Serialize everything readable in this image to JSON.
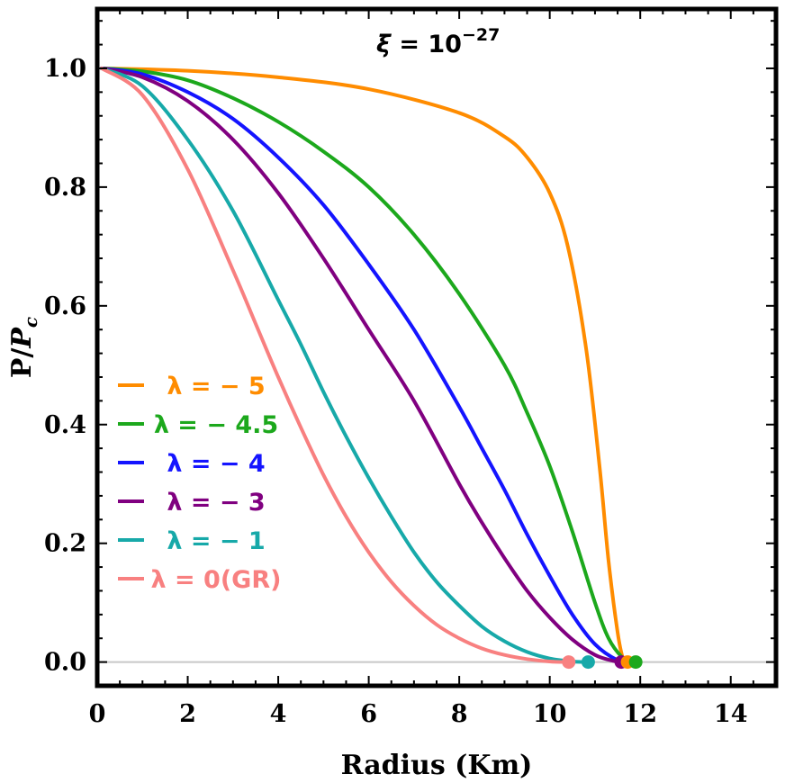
{
  "chart_data": {
    "type": "line",
    "xlabel": "Radius (Km)",
    "ylabel": "P/P_c",
    "ylabel_main": "P/",
    "ylabel_italic": "P",
    "ylabel_sub": "c",
    "xlim": [
      0,
      15
    ],
    "ylim": [
      -0.04,
      1.1
    ],
    "xticks": [
      0,
      2,
      4,
      6,
      8,
      10,
      12,
      14
    ],
    "xtick_labels": [
      "0",
      "2",
      "4",
      "6",
      "8",
      "10",
      "12",
      "14"
    ],
    "yticks": [
      0.0,
      0.2,
      0.4,
      0.6,
      0.8,
      1.0
    ],
    "ytick_labels": [
      "0.0",
      "0.2",
      "0.4",
      "0.6",
      "0.8",
      "1.0"
    ],
    "annotation": {
      "symbol": "ξ",
      "text": " = 10",
      "superscript": "−27"
    },
    "grid": false,
    "legend_position": "left",
    "series": [
      {
        "name": "λ = − 5",
        "color": "#ff8c00",
        "x": [
          0.1,
          2,
          4,
          6,
          8,
          9,
          9.5,
          10,
          10.4,
          10.8,
          11.1,
          11.3,
          11.5,
          11.62,
          11.7
        ],
        "y": [
          1.0,
          0.996,
          0.985,
          0.965,
          0.925,
          0.885,
          0.85,
          0.79,
          0.7,
          0.53,
          0.33,
          0.17,
          0.05,
          0.005,
          0.0
        ]
      },
      {
        "name": "λ = − 4.5",
        "color": "#1ca81c",
        "x": [
          0.1,
          1,
          2,
          3,
          4,
          5,
          6,
          7,
          8,
          9,
          9.5,
          10,
          10.5,
          11,
          11.3,
          11.6,
          11.8,
          11.9
        ],
        "y": [
          1.0,
          0.995,
          0.98,
          0.95,
          0.91,
          0.86,
          0.8,
          0.72,
          0.62,
          0.5,
          0.42,
          0.33,
          0.22,
          0.1,
          0.04,
          0.008,
          0.001,
          0.0
        ]
      },
      {
        "name": "λ = − 4",
        "color": "#1414ff",
        "x": [
          0.1,
          1,
          2,
          3,
          4,
          5,
          6,
          7,
          8,
          8.5,
          9,
          9.5,
          10,
          10.5,
          11,
          11.5,
          11.8
        ],
        "y": [
          1.0,
          0.99,
          0.96,
          0.915,
          0.85,
          0.77,
          0.67,
          0.56,
          0.43,
          0.36,
          0.29,
          0.215,
          0.145,
          0.08,
          0.03,
          0.003,
          0.0
        ]
      },
      {
        "name": "λ = − 3",
        "color": "#800080",
        "x": [
          0.1,
          1,
          2,
          3,
          4,
          5,
          6,
          7,
          8,
          8.5,
          9,
          9.5,
          10,
          10.5,
          11,
          11.4,
          11.6
        ],
        "y": [
          1.0,
          0.985,
          0.945,
          0.88,
          0.79,
          0.68,
          0.56,
          0.44,
          0.3,
          0.235,
          0.175,
          0.12,
          0.075,
          0.038,
          0.012,
          0.002,
          0.0
        ]
      },
      {
        "name": "λ = − 1",
        "color": "#17a9a9",
        "x": [
          0.1,
          1,
          2,
          3,
          4,
          4.5,
          5,
          5.5,
          6,
          6.5,
          7,
          7.5,
          8,
          8.5,
          9,
          9.5,
          10,
          10.5,
          10.85
        ],
        "y": [
          1.0,
          0.97,
          0.88,
          0.76,
          0.61,
          0.535,
          0.455,
          0.38,
          0.31,
          0.245,
          0.185,
          0.135,
          0.095,
          0.06,
          0.035,
          0.017,
          0.006,
          0.001,
          0.0
        ]
      },
      {
        "name": "λ = 0(GR)",
        "color": "#f88080",
        "x": [
          0.1,
          1,
          2,
          3,
          3.5,
          4,
          4.5,
          5,
          5.5,
          6,
          6.5,
          7,
          7.5,
          8,
          8.5,
          9,
          9.5,
          10,
          10.4
        ],
        "y": [
          1.0,
          0.955,
          0.83,
          0.66,
          0.57,
          0.48,
          0.395,
          0.315,
          0.245,
          0.185,
          0.135,
          0.095,
          0.063,
          0.04,
          0.023,
          0.012,
          0.005,
          0.001,
          0.0
        ]
      }
    ],
    "endpoints": [
      {
        "x": 10.42,
        "color": "#f88080"
      },
      {
        "x": 10.85,
        "color": "#17a9a9"
      },
      {
        "x": 11.58,
        "color": "#800080"
      },
      {
        "x": 11.72,
        "color": "#ff8c00"
      },
      {
        "x": 11.9,
        "color": "#1ca81c"
      }
    ],
    "zero_line_color": "#c8c8c8"
  }
}
